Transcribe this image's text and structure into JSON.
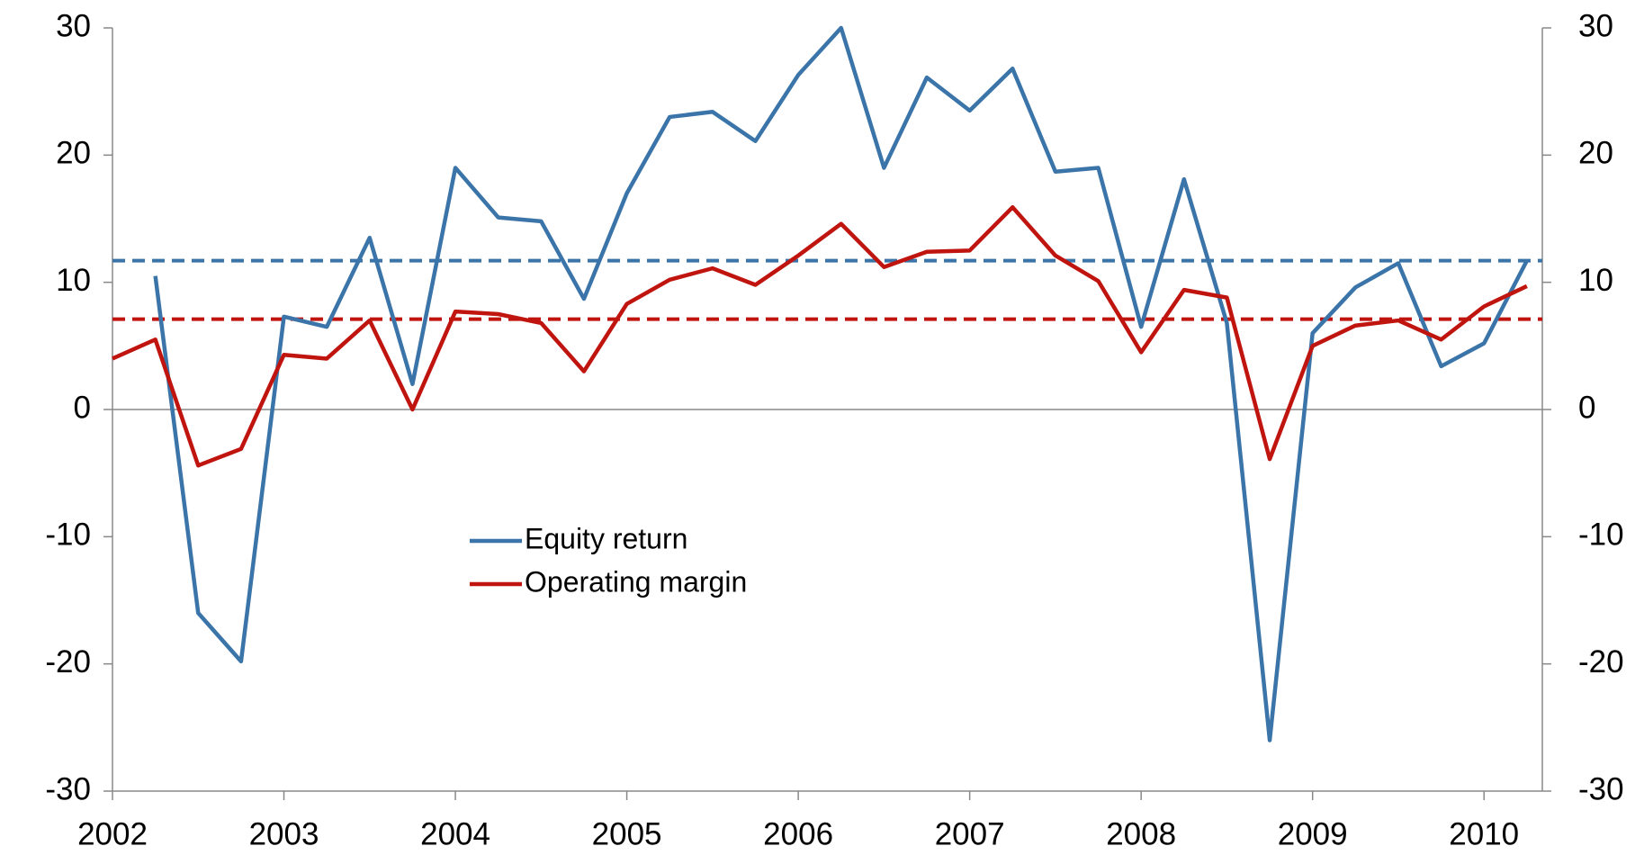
{
  "chart_data": {
    "type": "line",
    "x": [
      2002,
      2002.25,
      2002.5,
      2002.75,
      2003,
      2003.25,
      2003.5,
      2003.75,
      2004,
      2004.25,
      2004.5,
      2004.75,
      2005,
      2005.25,
      2005.5,
      2005.75,
      2006,
      2006.25,
      2006.5,
      2006.75,
      2007,
      2007.25,
      2007.5,
      2007.75,
      2008,
      2008.25,
      2008.5,
      2008.75,
      2009,
      2009.25,
      2009.5,
      2009.75,
      2010,
      2010.25
    ],
    "series": [
      {
        "name": "Equity return",
        "color": "#3a74a8",
        "values": [
          null,
          10.5,
          -16,
          -19.8,
          7.3,
          6.5,
          13.5,
          2,
          19,
          15.1,
          14.8,
          8.7,
          17,
          23,
          23.4,
          21.1,
          26.3,
          30,
          19,
          26.1,
          23.5,
          26.8,
          18.7,
          19,
          6.5,
          18.1,
          6.8,
          -26,
          6,
          9.6,
          11.5,
          3.4,
          5.2,
          11.7
        ]
      },
      {
        "name": "Operating margin",
        "color": "#c0140f",
        "values": [
          4,
          5.5,
          -4.4,
          -3.1,
          4.3,
          4,
          7,
          0,
          7.7,
          7.5,
          6.8,
          3,
          8.3,
          10.2,
          11.1,
          9.8,
          12.1,
          14.6,
          11.2,
          12.4,
          12.5,
          15.9,
          12.1,
          10.1,
          4.5,
          9.4,
          8.8,
          -3.9,
          5,
          6.6,
          7,
          5.5,
          8.1,
          9.7
        ]
      }
    ],
    "reference_lines": [
      {
        "value": 11.7,
        "color": "#3a74a8"
      },
      {
        "value": 7.1,
        "color": "#c0140f"
      }
    ],
    "xlim": [
      2002,
      2010.34
    ],
    "xticks": [
      2002,
      2003,
      2004,
      2005,
      2006,
      2007,
      2008,
      2009,
      2010
    ],
    "ylim": [
      -30,
      30
    ],
    "yticks": [
      -30,
      -20,
      -10,
      0,
      10,
      20,
      30
    ],
    "y2lim": [
      -30,
      30
    ],
    "y2ticks": [
      -30,
      -20,
      -10,
      0,
      10,
      20,
      30
    ]
  }
}
